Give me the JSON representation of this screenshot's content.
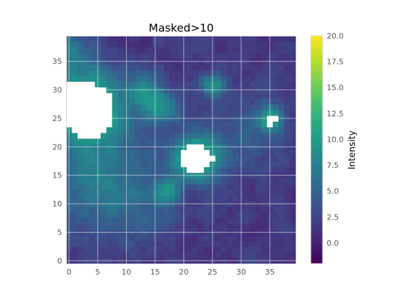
{
  "chart_data": {
    "type": "heatmap",
    "title": "Masked>10",
    "xlabel": "",
    "ylabel": "",
    "colorbar_label": "Intensity",
    "colormap": "viridis",
    "grid": true,
    "mask_rule": "values > 10 shown as white",
    "mask_color": "#ffffff",
    "vmin": -2,
    "vmax": 20,
    "xlim": [
      -0.5,
      39.5
    ],
    "ylim": [
      -0.5,
      39.5
    ],
    "xticks": [
      "0",
      "5",
      "10",
      "15",
      "20",
      "25",
      "30",
      "35"
    ],
    "yticks": [
      "0",
      "5",
      "10",
      "15",
      "20",
      "25",
      "30",
      "35"
    ],
    "colorbar_ticks": [
      "0.0",
      "2.5",
      "5.0",
      "7.5",
      "10.0",
      "12.5",
      "15.0",
      "17.5",
      "20.0"
    ],
    "rows": 40,
    "cols": 40,
    "sources": [
      {
        "x": 3,
        "y": 27,
        "amp": 13.0,
        "sigma": 4.5
      },
      {
        "x": 0,
        "y": 37,
        "amp": 5.0,
        "sigma": 2.5
      },
      {
        "x": 22,
        "y": 18,
        "amp": 12.0,
        "sigma": 2.8
      },
      {
        "x": 16,
        "y": 27,
        "amp": 7.0,
        "sigma": 2.2
      },
      {
        "x": 13,
        "y": 30,
        "amp": 6.0,
        "sigma": 2.0
      },
      {
        "x": 35,
        "y": 25,
        "amp": 9.0,
        "sigma": 1.6
      },
      {
        "x": 25,
        "y": 31,
        "amp": 8.0,
        "sigma": 1.4
      },
      {
        "x": 17,
        "y": 12,
        "amp": 6.0,
        "sigma": 1.8
      },
      {
        "x": 8,
        "y": 16,
        "amp": 3.5,
        "sigma": 6.0
      },
      {
        "x": 3,
        "y": 12,
        "amp": 3.0,
        "sigma": 5.0
      },
      {
        "x": 12,
        "y": 8,
        "amp": 2.0,
        "sigma": 4.0
      },
      {
        "x": 30,
        "y": 22,
        "amp": 2.5,
        "sigma": 5.0
      }
    ],
    "baseline": 1.6,
    "noise_amplitude": 1.2,
    "noise_seed": 7
  }
}
